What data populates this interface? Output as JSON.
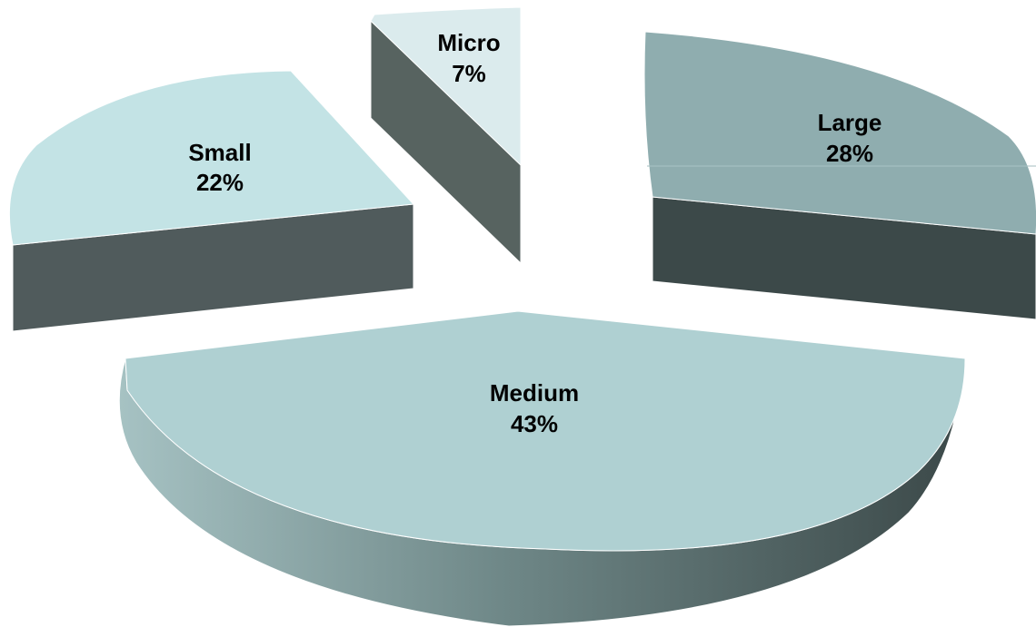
{
  "chart_data": {
    "type": "pie",
    "title": "",
    "legend": "none",
    "style": "3d-exploded",
    "slices": [
      {
        "label": "Micro",
        "percent_label": "7%",
        "value": 7,
        "top_color": "#dbebed",
        "side_color": "#576360"
      },
      {
        "label": "Large",
        "percent_label": "28%",
        "value": 28,
        "top_color": "#8fadaf",
        "side_color": "#3c4949"
      },
      {
        "label": "Medium",
        "percent_label": "43%",
        "value": 43,
        "top_color": "#afd0d2",
        "side_color": "#5b7171"
      },
      {
        "label": "Small",
        "percent_label": "22%",
        "value": 22,
        "top_color": "#c3e3e5",
        "side_color": "#505b5c"
      }
    ]
  }
}
